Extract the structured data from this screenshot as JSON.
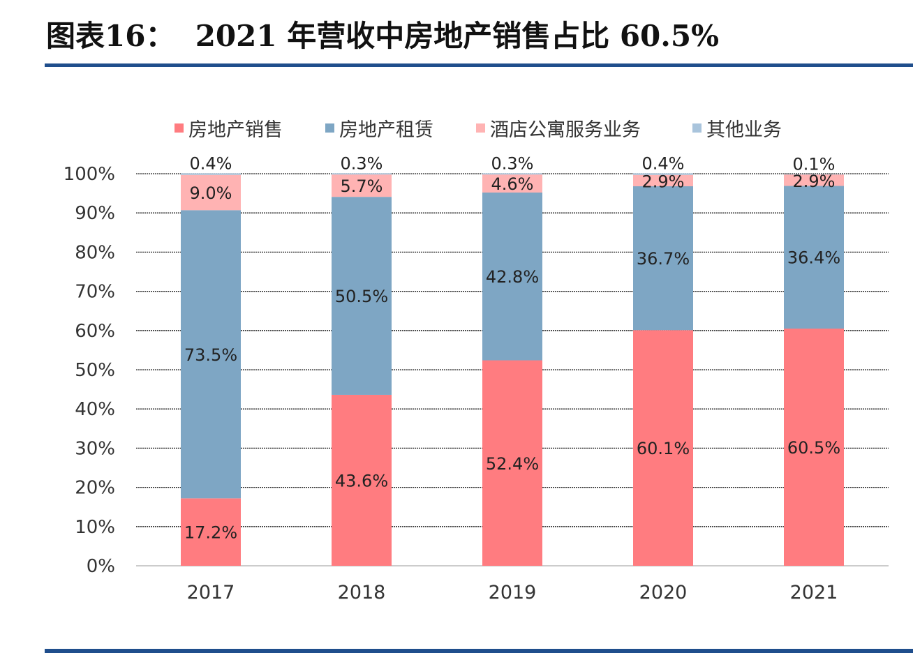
{
  "title": "图表16：  2021 年营收中房地产销售占比 60.5%",
  "colors": {
    "rule": "#1f4e8c"
  },
  "chart_data": {
    "type": "bar",
    "stacked": true,
    "categories": [
      "2017",
      "2018",
      "2019",
      "2020",
      "2021"
    ],
    "series": [
      {
        "name": "房地产销售",
        "color": "#FF7C80",
        "values": [
          17.2,
          43.6,
          52.4,
          60.1,
          60.5
        ]
      },
      {
        "name": "房地产租赁",
        "color": "#7EA6C4",
        "values": [
          73.5,
          50.5,
          42.8,
          36.7,
          36.4
        ]
      },
      {
        "name": "酒店公寓服务业务",
        "color": "#FFB3B3",
        "values": [
          9.0,
          5.7,
          4.6,
          2.9,
          2.9
        ]
      },
      {
        "name": "其他业务",
        "color": "#A9C4DC",
        "values": [
          0.4,
          0.3,
          0.3,
          0.4,
          0.1
        ]
      }
    ],
    "ylim": [
      0,
      100
    ],
    "yticks": [
      "0%",
      "10%",
      "20%",
      "30%",
      "40%",
      "50%",
      "60%",
      "70%",
      "80%",
      "90%",
      "100%"
    ],
    "grid": true,
    "legend": "top"
  }
}
